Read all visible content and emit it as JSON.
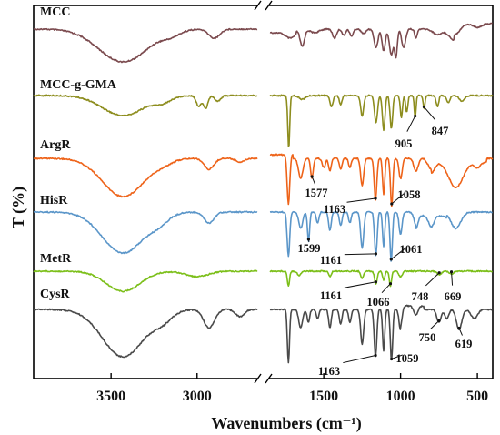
{
  "chart_data": {
    "type": "line",
    "xlabel": "Wavenumbers (cm⁻¹)",
    "ylabel": "T (%)",
    "x_axis": {
      "reversed": true,
      "broken": true,
      "segments": [
        [
          3950,
          2650
        ],
        [
          1850,
          400
        ]
      ],
      "ticks": [
        3500,
        3000,
        1500,
        1000,
        500
      ]
    },
    "colors": {
      "MCC": "#7b4a4e",
      "MCC-g-GMA": "#8d8d1e",
      "ArgR": "#ee6319",
      "HisR": "#5b96c9",
      "MetR": "#7cbf1a",
      "CysR": "#4a4a4a"
    },
    "series": [
      {
        "name": "MCC",
        "peaks": [
          3430,
          2900,
          1640,
          1430,
          1370,
          1320,
          1160,
          1110,
          1060,
          1030,
          900
        ]
      },
      {
        "name": "MCC-g-GMA",
        "peaks": [
          3430,
          2950,
          1728,
          1450,
          1390,
          1250,
          1160,
          1110,
          1060,
          995,
          905,
          847
        ]
      },
      {
        "name": "ArgR",
        "peaks": [
          3430,
          2930,
          1730,
          1577,
          1460,
          1390,
          1250,
          1163,
          1110,
          1058
        ],
        "annotations": [
          "1577",
          "1163",
          "1058"
        ]
      },
      {
        "name": "HisR",
        "peaks": [
          3430,
          2930,
          1730,
          1599,
          1460,
          1390,
          1250,
          1161,
          1110,
          1061
        ],
        "annotations": [
          "1599",
          "1161",
          "1061"
        ]
      },
      {
        "name": "MetR",
        "peaks": [
          3430,
          2930,
          1730,
          1460,
          1250,
          1161,
          1066,
          748,
          669
        ],
        "annotations": [
          "1161",
          "1066",
          "748",
          "669"
        ]
      },
      {
        "name": "CysR",
        "peaks": [
          3430,
          2930,
          1730,
          1600,
          1460,
          1390,
          1250,
          1163,
          1110,
          1059,
          750,
          619
        ],
        "annotations": [
          "1163",
          "1059",
          "750",
          "619"
        ]
      }
    ]
  }
}
